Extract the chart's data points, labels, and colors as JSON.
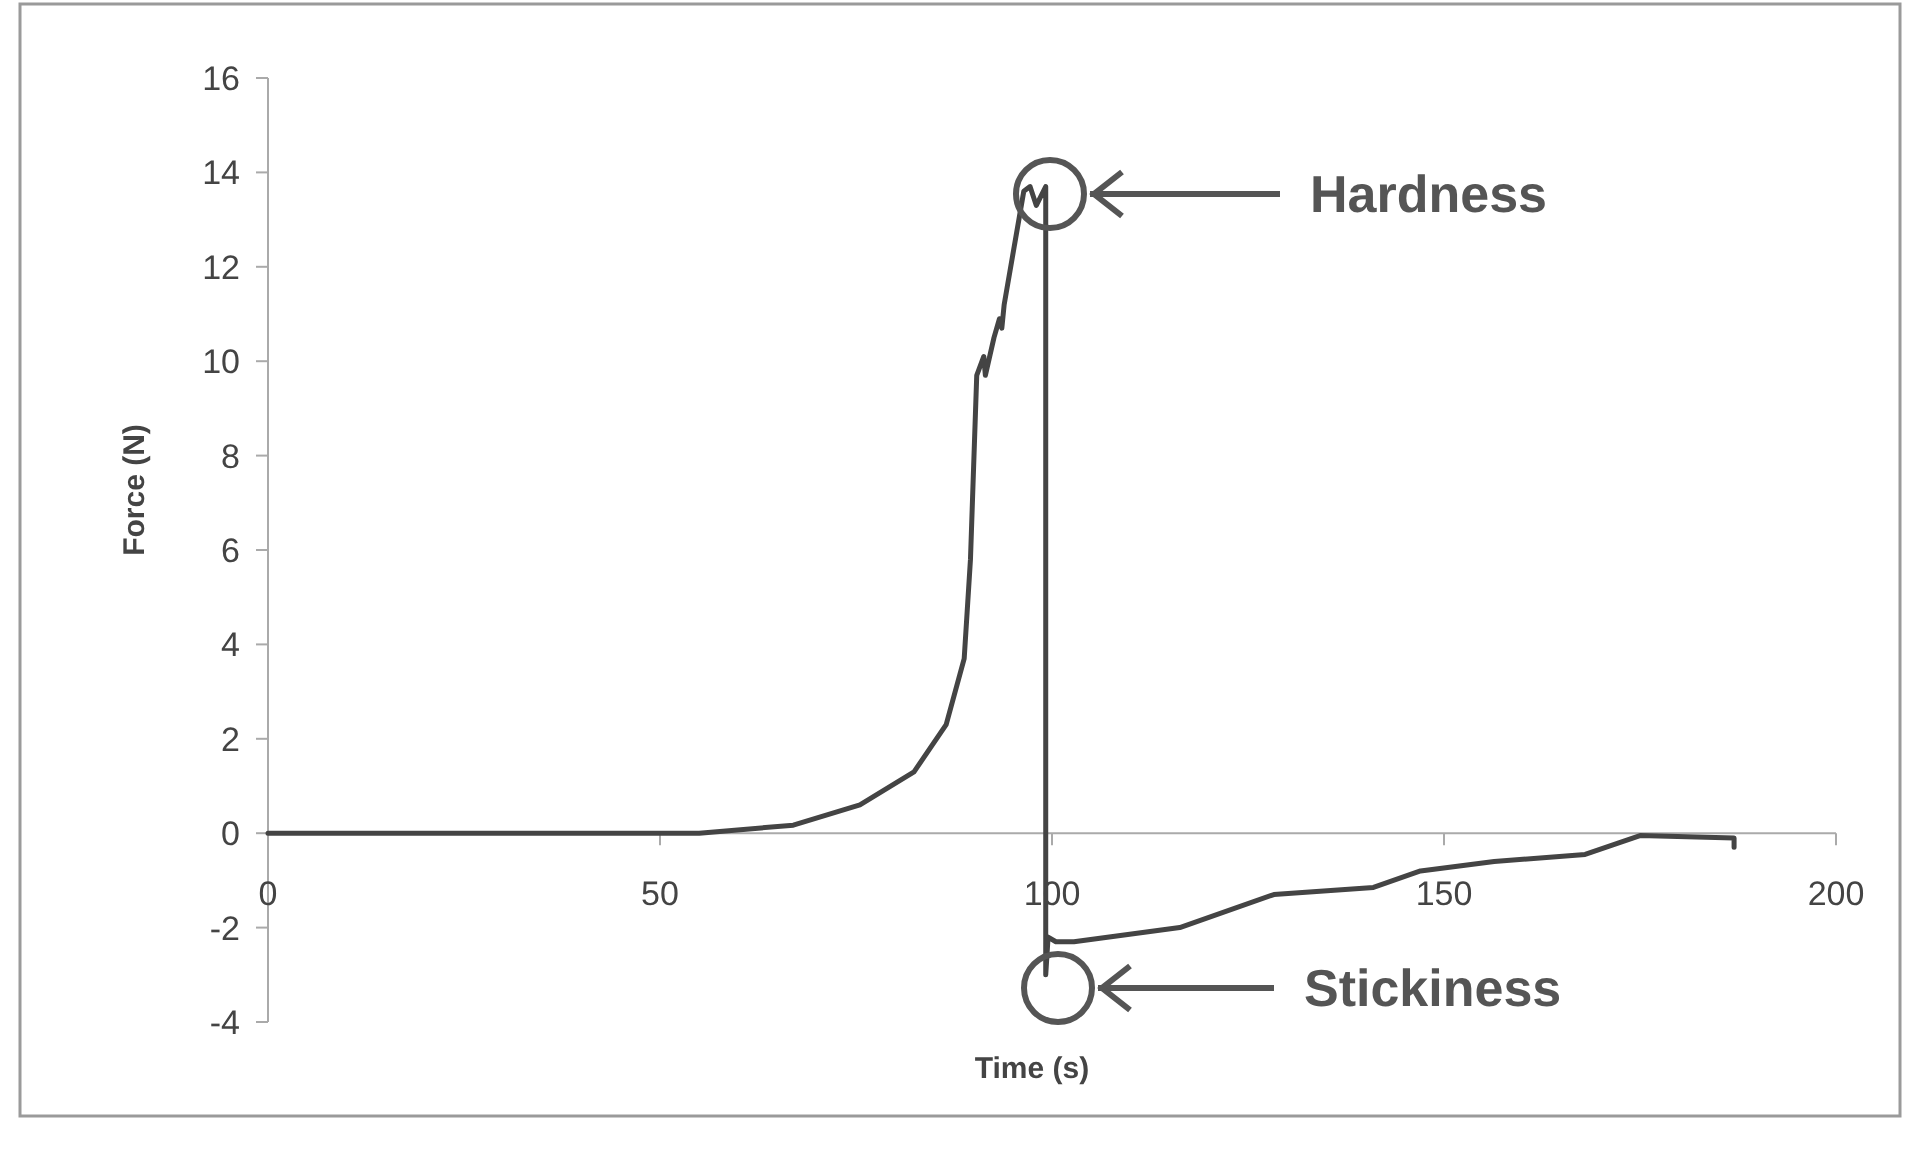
{
  "chart_data": {
    "type": "line",
    "xlabel": "Time (s)",
    "ylabel": "Force (N)",
    "x": [
      0,
      20,
      40,
      55,
      67,
      75.5,
      82.4,
      86.5,
      88.8,
      89.6,
      90.4,
      91.3,
      91.5,
      92.6,
      93.3,
      93.6,
      93.9,
      96.4,
      97.2,
      98,
      99.2,
      99.2,
      99.5,
      100.5,
      102.8,
      116.3,
      128.3,
      141,
      147,
      156.4,
      168,
      175,
      187,
      187
    ],
    "series": [
      {
        "color": "#444444",
        "values": [
          0,
          0,
          0,
          0,
          0.17,
          0.6,
          1.3,
          2.3,
          3.7,
          5.8,
          9.7,
          10.1,
          9.7,
          10.5,
          10.9,
          10.7,
          11.2,
          13.6,
          13.7,
          13.3,
          13.7,
          -3.0,
          -2.2,
          -2.3,
          -2.3,
          -2.0,
          -1.3,
          -1.15,
          -0.8,
          -0.6,
          -0.45,
          -0.05,
          -0.1,
          -0.3
        ]
      }
    ],
    "xlim": [
      0,
      200
    ],
    "xticks": [
      0,
      50,
      100,
      150,
      200
    ],
    "ylim": [
      -4,
      16
    ],
    "yticks": [
      -4,
      -2,
      0,
      2,
      4,
      6,
      8,
      10,
      12,
      14,
      16
    ],
    "grid": false,
    "marker": "none",
    "line_style": "solid",
    "annotations": [
      "Hardness",
      "Stickiness"
    ]
  }
}
